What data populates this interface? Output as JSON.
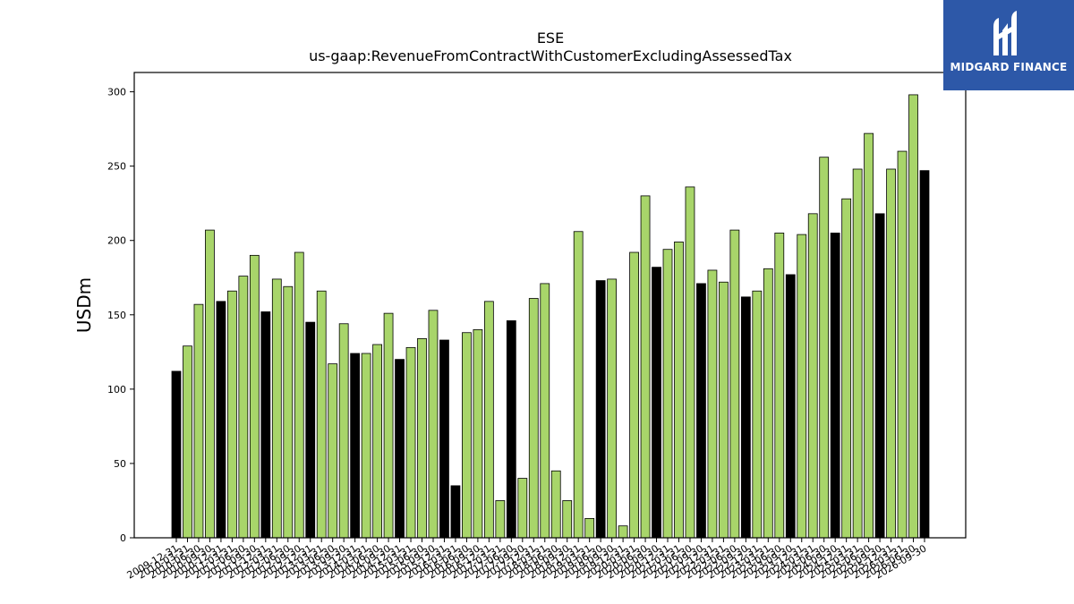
{
  "chart_data": {
    "type": "bar",
    "title": "ESE",
    "subtitle": "us-gaap:RevenueFromContractWithCustomerExcludingAssessedTax",
    "xlabel": "",
    "ylabel": "USDm",
    "ylim": [
      0,
      313
    ],
    "yticks": [
      0,
      50,
      100,
      150,
      200,
      250,
      300
    ],
    "grid": false,
    "colors": {
      "annual": "#000000",
      "quarterly": "#a8d56a",
      "edge": "#000000"
    },
    "categories": [
      "2009-12-31",
      "2010-03-31",
      "2010-06-30",
      "2010-09-30",
      "2010-12-31",
      "2011-03-31",
      "2011-06-30",
      "2011-09-30",
      "2011-12-31",
      "2012-03-31",
      "2012-06-30",
      "2012-09-30",
      "2012-12-31",
      "2013-03-31",
      "2013-06-30",
      "2013-09-30",
      "2013-12-31",
      "2014-03-31",
      "2014-06-30",
      "2014-09-30",
      "2014-12-31",
      "2015-03-31",
      "2015-06-30",
      "2015-09-30",
      "2015-12-31",
      "2016-03-31",
      "2016-06-30",
      "2016-09-30",
      "2016-12-31",
      "2017-03-31",
      "2017-06-30",
      "2017-09-30",
      "2017-12-31",
      "2018-03-31",
      "2018-06-30",
      "2018-09-30",
      "2018-12-31",
      "2019-03-31",
      "2019-06-30",
      "2019-09-30",
      "2019-12-31",
      "2020-03-31",
      "2020-06-30",
      "2020-09-30",
      "2020-12-31",
      "2021-03-31",
      "2021-06-30",
      "2021-09-30",
      "2021-12-31",
      "2022-03-31",
      "2022-06-30",
      "2022-09-30",
      "2022-12-31",
      "2023-03-31",
      "2023-06-30",
      "2023-09-30",
      "2023-12-31",
      "2024-03-31",
      "2024-06-30",
      "2024-09-30",
      "2024-12-31",
      "2025-03-31",
      "2025-06-30",
      "2025-09-30",
      "2025-12-31",
      "2026-03-31",
      "2026-06-30",
      "2026-09-30"
    ],
    "values": [
      112,
      129,
      157,
      207,
      159,
      166,
      176,
      190,
      152,
      174,
      169,
      192,
      145,
      166,
      117,
      144,
      124,
      124,
      130,
      151,
      120,
      128,
      134,
      153,
      133,
      35,
      138,
      140,
      159,
      25,
      146,
      40,
      161,
      171,
      45,
      25,
      206,
      13,
      173,
      174,
      8,
      192,
      230,
      182,
      194,
      199,
      236,
      171,
      180,
      172,
      207,
      162,
      166,
      181,
      205,
      177,
      204,
      218,
      256,
      205,
      228,
      248,
      272,
      218,
      248,
      260,
      298,
      247
    ],
    "series_kind": [
      "annual",
      "quarterly",
      "quarterly",
      "quarterly",
      "annual",
      "quarterly",
      "quarterly",
      "quarterly",
      "annual",
      "quarterly",
      "quarterly",
      "quarterly",
      "annual",
      "quarterly",
      "quarterly",
      "quarterly",
      "annual",
      "quarterly",
      "quarterly",
      "quarterly",
      "annual",
      "quarterly",
      "quarterly",
      "quarterly",
      "annual",
      "annual",
      "quarterly",
      "quarterly",
      "quarterly",
      "quarterly",
      "annual",
      "quarterly",
      "quarterly",
      "quarterly",
      "quarterly",
      "quarterly",
      "quarterly",
      "quarterly",
      "annual",
      "quarterly",
      "quarterly",
      "quarterly",
      "quarterly",
      "annual",
      "quarterly",
      "quarterly",
      "quarterly",
      "annual",
      "quarterly",
      "quarterly",
      "quarterly",
      "annual",
      "quarterly",
      "quarterly",
      "quarterly",
      "annual",
      "quarterly",
      "quarterly",
      "quarterly",
      "annual",
      "quarterly",
      "quarterly",
      "quarterly",
      "annual",
      "quarterly",
      "quarterly",
      "quarterly",
      "annual"
    ]
  },
  "logo": {
    "brand": "MIDGARD FINANCE"
  }
}
